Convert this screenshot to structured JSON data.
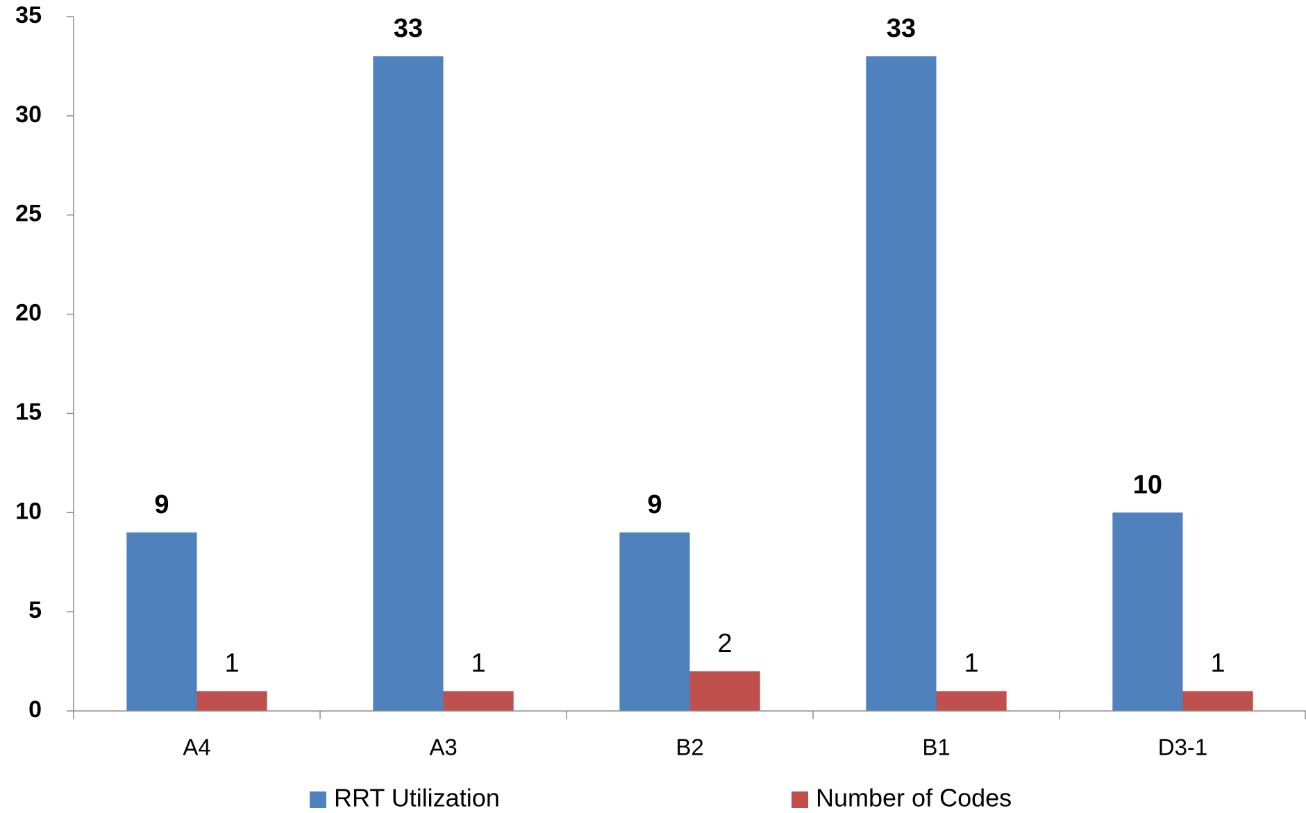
{
  "chart_data": {
    "type": "bar",
    "categories": [
      "A4",
      "A3",
      "B2",
      "B1",
      "D3-1"
    ],
    "series": [
      {
        "name": "RRT Utilization",
        "color": "#4f81bd",
        "values": [
          9,
          33,
          9,
          33,
          10
        ]
      },
      {
        "name": "Number of Codes",
        "color": "#c0504d",
        "values": [
          1,
          1,
          2,
          1,
          1
        ]
      }
    ],
    "ylim": [
      0,
      35
    ],
    "yticks": [
      0,
      5,
      10,
      15,
      20,
      25,
      30,
      35
    ],
    "grid": false,
    "legend": "bottom"
  }
}
